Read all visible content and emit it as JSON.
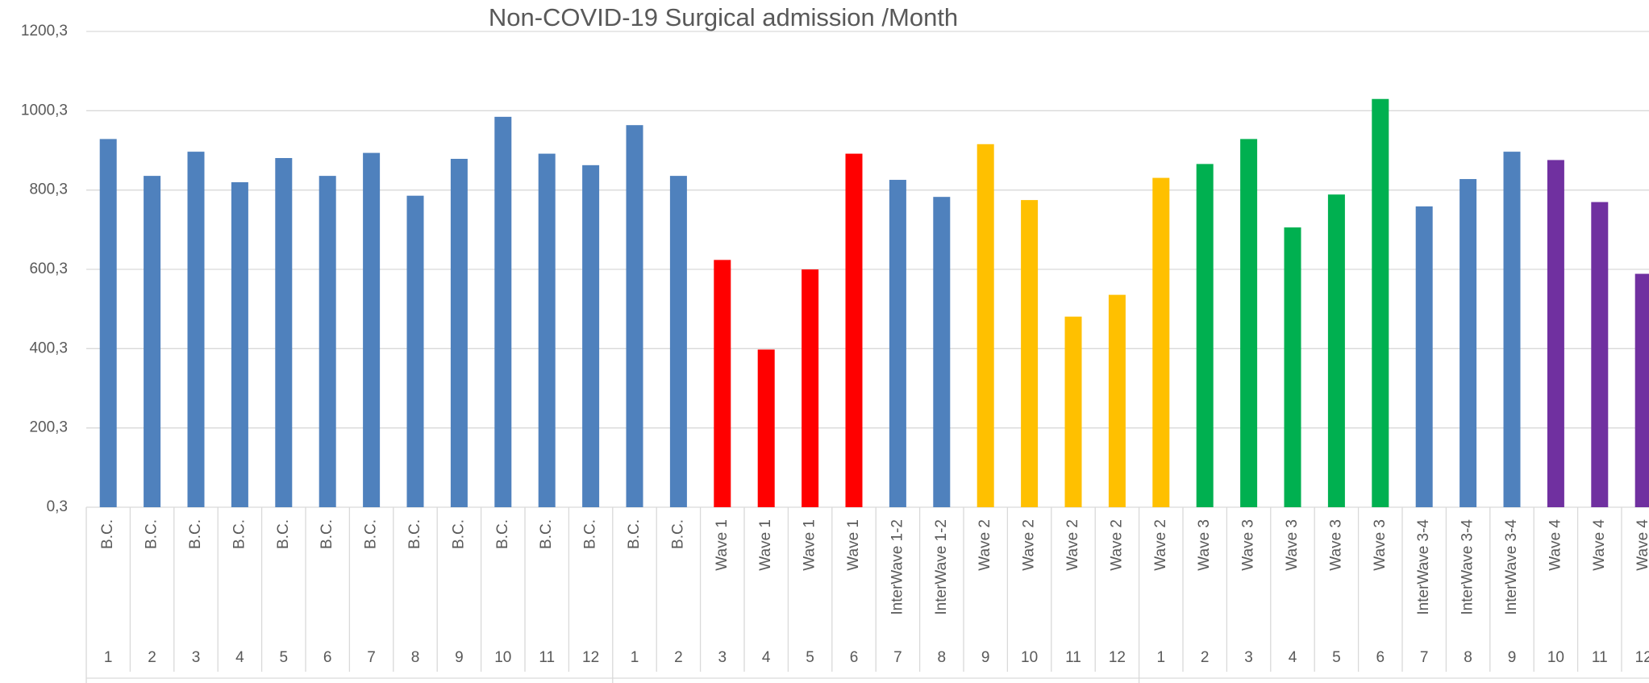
{
  "chart_data": {
    "type": "bar",
    "title": "Non-COVID-19  Surgical admission /Month",
    "categories": [
      "B.C.",
      "B.C.",
      "B.C.",
      "B.C.",
      "B.C.",
      "B.C.",
      "B.C.",
      "B.C.",
      "B.C.",
      "B.C.",
      "B.C.",
      "B.C.",
      "B.C.",
      "B.C.",
      "Wave 1",
      "Wave 1",
      "Wave 1",
      "Wave 1",
      "InterWave 1-2",
      "InterWave 1-2",
      "Wave 2",
      "Wave 2",
      "Wave 2",
      "Wave 2",
      "Wave 2",
      "Wave 3",
      "Wave 3",
      "Wave 3",
      "Wave 3",
      "Wave 3",
      "InterWave 3-4",
      "InterWave 3-4",
      "InterWave 3-4",
      "Wave 4",
      "Wave 4",
      "Wave 4"
    ],
    "months": [
      "1",
      "2",
      "3",
      "4",
      "5",
      "6",
      "7",
      "8",
      "9",
      "10",
      "11",
      "12",
      "1",
      "2",
      "3",
      "4",
      "5",
      "6",
      "7",
      "8",
      "9",
      "10",
      "11",
      "12",
      "1",
      "2",
      "3",
      "4",
      "5",
      "6",
      "7",
      "8",
      "9",
      "10",
      "11",
      "12"
    ],
    "values": [
      929,
      836,
      897,
      820,
      881,
      836,
      894,
      786,
      879,
      985,
      892,
      863,
      964,
      836,
      624,
      398,
      600,
      892,
      826,
      783,
      916,
      775,
      481,
      536,
      831,
      866,
      929,
      706,
      789,
      1030,
      759,
      828,
      897,
      876,
      770,
      589
    ],
    "colors": [
      "#4f81bd",
      "#4f81bd",
      "#4f81bd",
      "#4f81bd",
      "#4f81bd",
      "#4f81bd",
      "#4f81bd",
      "#4f81bd",
      "#4f81bd",
      "#4f81bd",
      "#4f81bd",
      "#4f81bd",
      "#4f81bd",
      "#4f81bd",
      "#ff0000",
      "#ff0000",
      "#ff0000",
      "#ff0000",
      "#4f81bd",
      "#4f81bd",
      "#ffc000",
      "#ffc000",
      "#ffc000",
      "#ffc000",
      "#ffc000",
      "#00b050",
      "#00b050",
      "#00b050",
      "#00b050",
      "#00b050",
      "#4f81bd",
      "#4f81bd",
      "#4f81bd",
      "#7030a0",
      "#7030a0",
      "#7030a0"
    ],
    "ylim": [
      0.3,
      1200.3
    ],
    "yticks": [
      {
        "value": 0.3,
        "label": "0,3"
      },
      {
        "value": 200.3,
        "label": "200,3"
      },
      {
        "value": 400.3,
        "label": "400,3"
      },
      {
        "value": 600.3,
        "label": "600,3"
      },
      {
        "value": 800.3,
        "label": "800,3"
      },
      {
        "value": 1000.3,
        "label": "1000,3"
      },
      {
        "value": 1200.3,
        "label": "1200,3"
      }
    ],
    "grid": true
  }
}
